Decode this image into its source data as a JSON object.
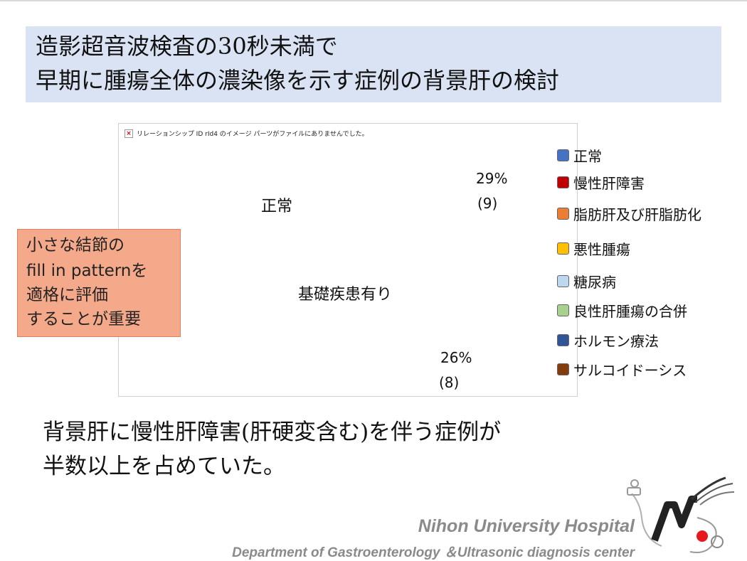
{
  "title": {
    "line1": "造影超音波検査の30秒未満で",
    "line2": "早期に腫瘍全体の濃染像を示す症例の背景肝の検討"
  },
  "chart": {
    "missing_image_text": "リレーションシップ ID rId4 のイメージ パーツがファイルにありませんでした。",
    "label_normal": "正常",
    "label_disease": "基礎疾患有り",
    "pct_a": "29%",
    "count_a": "(9)",
    "pct_b": "26%",
    "count_b": "(8)"
  },
  "legend": [
    {
      "label": "正常",
      "color": "#4472c4"
    },
    {
      "label": "慢性肝障害",
      "color": "#c00000"
    },
    {
      "label": "脂肪肝及び肝脂肪化",
      "color": "#ed7d31"
    },
    {
      "label": "悪性腫瘍",
      "color": "#ffc000"
    },
    {
      "label": "糖尿病",
      "color": "#bdd7ee"
    },
    {
      "label": "良性肝腫瘍の合併",
      "color": "#a9d18e"
    },
    {
      "label": "ホルモン療法",
      "color": "#2f5597"
    },
    {
      "label": "サルコイドーシス",
      "color": "#843c0c"
    }
  ],
  "note": {
    "lines": [
      "小さな結節の",
      "fill in patternを",
      "適格に評価",
      "することが重要"
    ]
  },
  "conclusion": {
    "line1": "背景肝に慢性肝障害(肝硬変含む)を伴う症例が",
    "line2": "半数以上を占めていた。"
  },
  "footer": {
    "hospital": "Nihon University Hospital",
    "department": "Department of Gastroenterology ＆Ultrasonic diagnosis center"
  }
}
